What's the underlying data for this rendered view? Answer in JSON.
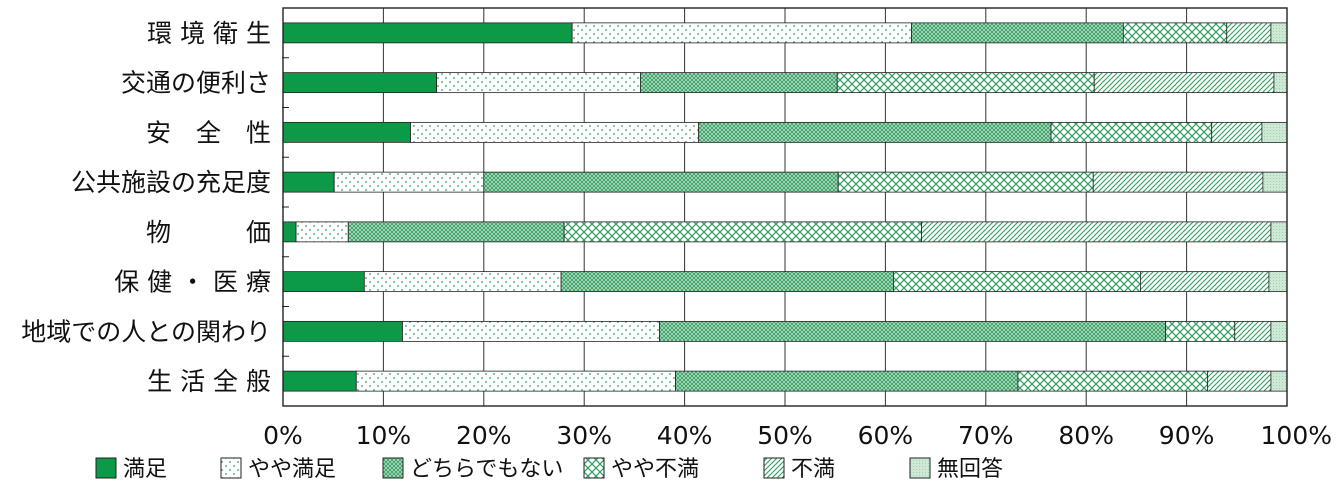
{
  "chart_data": {
    "type": "bar",
    "orientation": "horizontal",
    "stacked": "percent",
    "categories": [
      "環 境 衛 生",
      "交通の便利さ",
      "安　全　性",
      "公共施設の充足度",
      "物　　　価",
      "保 健 ・ 医 療",
      "地域での人との関わり",
      "生 活 全 般"
    ],
    "series": [
      {
        "name": "満足",
        "values": [
          28.8,
          15.3,
          12.7,
          5.1,
          1.3,
          8.1,
          11.9,
          7.3
        ]
      },
      {
        "name": "やや満足",
        "values": [
          33.8,
          20.3,
          28.7,
          14.9,
          5.2,
          19.6,
          25.6,
          31.8
        ]
      },
      {
        "name": "どちらでもない",
        "values": [
          21.1,
          19.6,
          35.1,
          35.3,
          21.5,
          33.1,
          50.4,
          34.1
        ]
      },
      {
        "name": "やや不満",
        "values": [
          10.3,
          25.6,
          16.0,
          25.4,
          35.6,
          24.6,
          6.9,
          18.9
        ]
      },
      {
        "name": "不満",
        "values": [
          4.4,
          17.9,
          5.0,
          16.9,
          34.8,
          12.8,
          3.6,
          6.3
        ]
      },
      {
        "name": "無回答",
        "values": [
          1.6,
          1.3,
          2.5,
          2.4,
          1.6,
          1.8,
          1.6,
          1.6
        ]
      }
    ],
    "x_ticks": [
      "0%",
      "10%",
      "20%",
      "30%",
      "40%",
      "50%",
      "60%",
      "70%",
      "80%",
      "90%",
      "100%"
    ],
    "xlim": [
      0,
      100
    ],
    "grid": "vertical",
    "legend_position": "bottom",
    "colors": {
      "dark_green": "#0c9a48",
      "mid_green": "#2f9e5e",
      "light_green": "#7cc496",
      "pale_green": "#c8e6d2",
      "axis": "#222222",
      "grid": "#333333"
    }
  }
}
